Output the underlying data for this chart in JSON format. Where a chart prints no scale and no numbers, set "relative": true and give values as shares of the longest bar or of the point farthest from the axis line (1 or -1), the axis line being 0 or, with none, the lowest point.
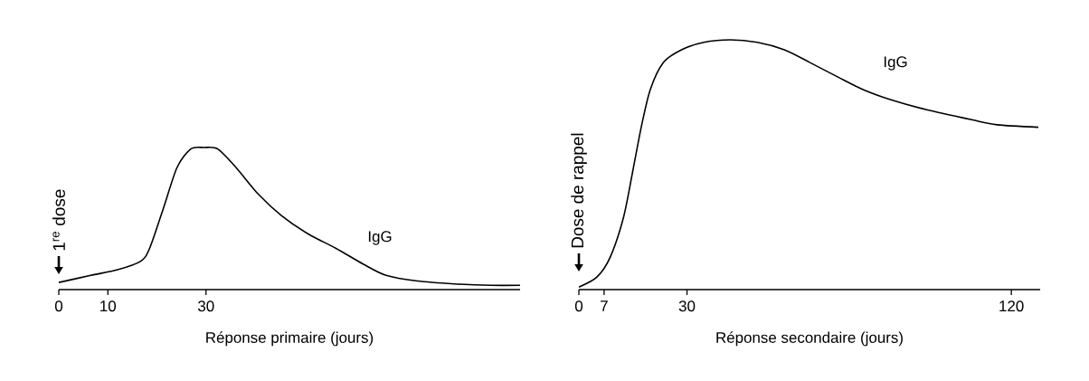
{
  "chart_data": [
    {
      "type": "line",
      "relative": true,
      "xlabel": "Réponse primaire (jours)",
      "xlim": [
        0,
        94
      ],
      "xticks": [
        0,
        10,
        30
      ],
      "x": [
        0,
        6.5,
        12,
        16.7,
        18.5,
        21.3,
        24.1,
        26.9,
        29.6,
        32.4,
        36.1,
        40.7,
        45.4,
        50.9,
        56.5,
        62,
        66.7,
        73.1,
        80.6,
        88,
        94
      ],
      "values": [
        0.05,
        0.1,
        0.14,
        0.2,
        0.29,
        0.57,
        0.86,
        0.99,
        1,
        0.99,
        0.86,
        0.67,
        0.52,
        0.39,
        0.29,
        0.18,
        0.1,
        0.06,
        0.04,
        0.03,
        0.03
      ],
      "color": "#000000",
      "marker": "none",
      "line_style": "solid",
      "annotations": [
        "1$^{re}$ dose",
        "IgG"
      ]
    },
    {
      "type": "line",
      "relative": true,
      "xlabel": "Réponse secondaire (jours)",
      "xlim": [
        0,
        128
      ],
      "xticks": [
        0,
        7,
        30,
        120
      ],
      "x": [
        0,
        5,
        8.7,
        12.4,
        14.9,
        17.3,
        19.8,
        23.5,
        28.5,
        34.7,
        42,
        49.5,
        57,
        64,
        72,
        79,
        86.6,
        96.5,
        109,
        116,
        127.5
      ],
      "values": [
        0.01,
        0.05,
        0.13,
        0.29,
        0.47,
        0.65,
        0.8,
        0.91,
        0.96,
        0.99,
        1,
        0.99,
        0.96,
        0.91,
        0.85,
        0.8,
        0.76,
        0.72,
        0.68,
        0.66,
        0.65
      ],
      "color": "#000000",
      "marker": "none",
      "line_style": "solid",
      "annotations": [
        "Dose de rappel",
        "IgG"
      ]
    }
  ]
}
